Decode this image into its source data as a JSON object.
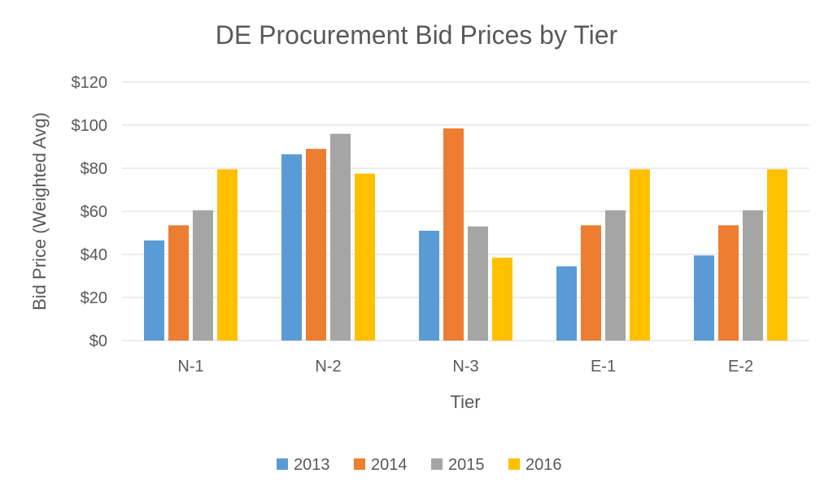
{
  "chart_data": {
    "type": "bar",
    "title": "DE Procurement Bid Prices by Tier",
    "xlabel": "Tier",
    "ylabel": "Bid Price (Weighted Avg)",
    "categories": [
      "N-1",
      "N-2",
      "N-3",
      "E-1",
      "E-2"
    ],
    "ylim": [
      0,
      120
    ],
    "yticks": [
      0,
      20,
      40,
      60,
      80,
      100,
      120
    ],
    "ytick_labels": [
      "$0",
      "$20",
      "$40",
      "$60",
      "$80",
      "$100",
      "$120"
    ],
    "grid": true,
    "legend_position": "bottom",
    "series": [
      {
        "name": "2013",
        "color": "#5b9bd5",
        "values": [
          46.5,
          86.5,
          51,
          34.5,
          39.5
        ]
      },
      {
        "name": "2014",
        "color": "#ed7d31",
        "values": [
          53.5,
          89,
          98.5,
          53.5,
          53.5
        ]
      },
      {
        "name": "2015",
        "color": "#a5a5a5",
        "values": [
          60.5,
          96,
          53,
          60.5,
          60.5
        ]
      },
      {
        "name": "2016",
        "color": "#ffc000",
        "values": [
          79.5,
          77.5,
          38.5,
          79.5,
          79.5
        ]
      }
    ]
  }
}
